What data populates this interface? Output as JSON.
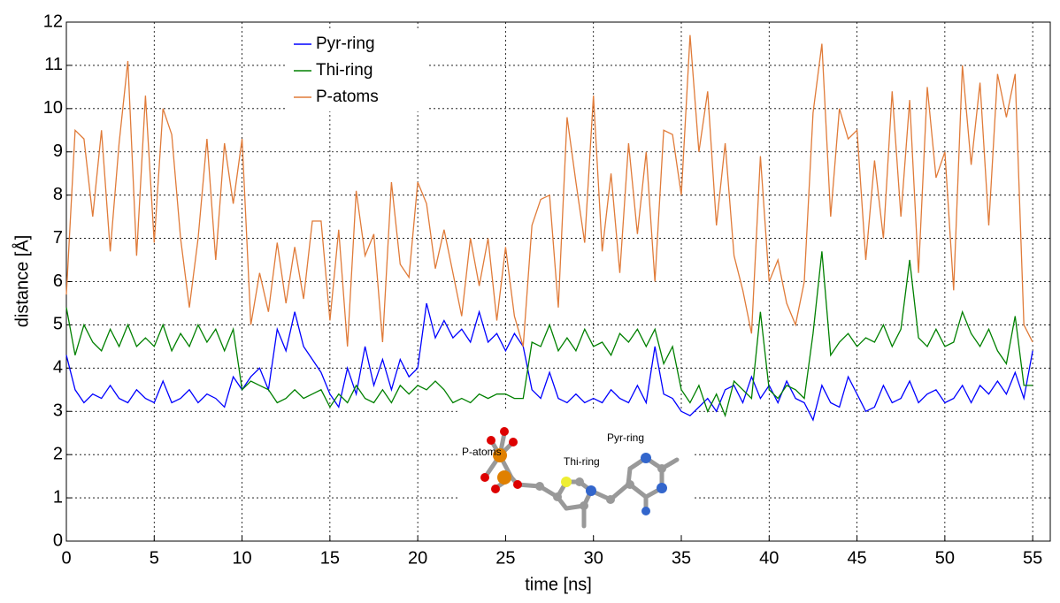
{
  "chart_data": {
    "type": "line",
    "x_label": "time [ns]",
    "y_label": "distance [Å]",
    "xlim": [
      0,
      56
    ],
    "ylim": [
      0,
      12
    ],
    "xticks": [
      0,
      5,
      10,
      15,
      20,
      25,
      30,
      35,
      40,
      45,
      50,
      55
    ],
    "yticks": [
      0,
      1,
      2,
      3,
      4,
      5,
      6,
      7,
      8,
      9,
      10,
      11,
      12
    ],
    "grid": true,
    "legend": "upper left",
    "annotations": [
      "P-atoms",
      "Thi-ring",
      "Pyr-ring"
    ],
    "x": [
      0,
      0.5,
      1,
      1.5,
      2,
      2.5,
      3,
      3.5,
      4,
      4.5,
      5,
      5.5,
      6,
      6.5,
      7,
      7.5,
      8,
      8.5,
      9,
      9.5,
      10,
      10.5,
      11,
      11.5,
      12,
      12.5,
      13,
      13.5,
      14,
      14.5,
      15,
      15.5,
      16,
      16.5,
      17,
      17.5,
      18,
      18.5,
      19,
      19.5,
      20,
      20.5,
      21,
      21.5,
      22,
      22.5,
      23,
      23.5,
      24,
      24.5,
      25,
      25.5,
      26,
      26.5,
      27,
      27.5,
      28,
      28.5,
      29,
      29.5,
      30,
      30.5,
      31,
      31.5,
      32,
      32.5,
      33,
      33.5,
      34,
      34.5,
      35,
      35.5,
      36,
      36.5,
      37,
      37.5,
      38,
      38.5,
      39,
      39.5,
      40,
      40.5,
      41,
      41.5,
      42,
      42.5,
      43,
      43.5,
      44,
      44.5,
      45,
      45.5,
      46,
      46.5,
      47,
      47.5,
      48,
      48.5,
      49,
      49.5,
      50,
      50.5,
      51,
      51.5,
      52,
      52.5,
      53,
      53.5,
      54,
      54.5,
      55
    ],
    "series": [
      {
        "name": "Pyr-ring",
        "color": "#0000ff",
        "values": [
          4.3,
          3.5,
          3.2,
          3.4,
          3.3,
          3.6,
          3.3,
          3.2,
          3.5,
          3.3,
          3.2,
          3.7,
          3.2,
          3.3,
          3.5,
          3.2,
          3.4,
          3.3,
          3.1,
          3.8,
          3.5,
          3.8,
          4.0,
          3.5,
          4.9,
          4.4,
          5.3,
          4.5,
          4.2,
          3.9,
          3.4,
          3.1,
          4.0,
          3.4,
          4.5,
          3.6,
          4.2,
          3.5,
          4.2,
          3.8,
          4.0,
          5.5,
          4.7,
          5.1,
          4.7,
          4.9,
          4.6,
          5.3,
          4.6,
          4.8,
          4.4,
          4.8,
          4.5,
          3.5,
          3.3,
          3.9,
          3.3,
          3.2,
          3.4,
          3.2,
          3.3,
          3.2,
          3.5,
          3.3,
          3.2,
          3.6,
          3.2,
          4.5,
          3.4,
          3.3,
          3.0,
          2.9,
          3.1,
          3.3,
          3.0,
          3.5,
          3.6,
          3.2,
          3.8,
          3.3,
          3.6,
          3.2,
          3.7,
          3.3,
          3.2,
          2.8,
          3.6,
          3.2,
          3.1,
          3.8,
          3.4,
          3.0,
          3.1,
          3.6,
          3.2,
          3.3,
          3.7,
          3.2,
          3.4,
          3.5,
          3.2,
          3.3,
          3.6,
          3.2,
          3.6,
          3.4,
          3.7,
          3.4,
          3.9,
          3.3,
          4.4
        ]
      },
      {
        "name": "Thi-ring",
        "color": "#008000",
        "values": [
          5.4,
          4.3,
          5.0,
          4.6,
          4.4,
          4.9,
          4.5,
          5.0,
          4.5,
          4.7,
          4.5,
          5.0,
          4.4,
          4.8,
          4.5,
          5.0,
          4.6,
          4.9,
          4.4,
          4.9,
          3.5,
          3.7,
          3.6,
          3.5,
          3.2,
          3.3,
          3.5,
          3.3,
          3.4,
          3.5,
          3.1,
          3.4,
          3.2,
          3.6,
          3.3,
          3.2,
          3.5,
          3.2,
          3.6,
          3.4,
          3.6,
          3.5,
          3.7,
          3.5,
          3.2,
          3.3,
          3.2,
          3.4,
          3.3,
          3.4,
          3.4,
          3.3,
          3.3,
          4.6,
          4.5,
          5.0,
          4.4,
          4.7,
          4.4,
          4.9,
          4.5,
          4.6,
          4.3,
          4.8,
          4.6,
          4.9,
          4.5,
          4.9,
          4.1,
          4.5,
          3.5,
          3.2,
          3.6,
          3.0,
          3.4,
          2.9,
          3.7,
          3.5,
          3.3,
          5.3,
          3.5,
          3.3,
          3.6,
          3.5,
          3.3,
          4.8,
          6.7,
          4.3,
          4.6,
          4.8,
          4.5,
          4.7,
          4.6,
          5.0,
          4.5,
          4.9,
          6.5,
          4.7,
          4.5,
          4.9,
          4.5,
          4.6,
          5.3,
          4.8,
          4.5,
          4.9,
          4.4,
          4.1,
          5.2,
          3.6,
          3.6
        ]
      },
      {
        "name": "P-atoms",
        "color": "#e07b39",
        "values": [
          5.7,
          9.5,
          9.3,
          7.5,
          9.5,
          6.7,
          9.2,
          11.1,
          6.6,
          10.3,
          6.9,
          10.0,
          9.4,
          7.0,
          5.4,
          7.0,
          9.3,
          6.5,
          9.2,
          7.8,
          9.3,
          5.0,
          6.2,
          5.3,
          6.9,
          5.5,
          6.8,
          5.6,
          7.4,
          7.4,
          5.1,
          7.2,
          4.5,
          8.1,
          6.6,
          7.1,
          4.6,
          8.3,
          6.4,
          6.1,
          8.3,
          7.8,
          6.3,
          7.2,
          6.2,
          5.2,
          7.0,
          5.9,
          7.0,
          5.1,
          6.8,
          5.2,
          4.5,
          7.3,
          7.9,
          8.0,
          5.4,
          9.8,
          8.3,
          6.9,
          10.3,
          6.7,
          8.5,
          6.2,
          9.2,
          7.1,
          9.0,
          6.0,
          9.5,
          9.4,
          8.0,
          11.7,
          9.0,
          10.4,
          7.3,
          9.2,
          6.6,
          5.8,
          4.8,
          8.9,
          6.0,
          6.5,
          5.5,
          5.0,
          6.0,
          9.9,
          11.5,
          7.5,
          10.0,
          9.3,
          9.5,
          6.5,
          8.8,
          7.0,
          10.4,
          7.5,
          10.2,
          6.2,
          10.5,
          8.4,
          9.0,
          5.8,
          11.0,
          8.7,
          10.6,
          7.3,
          10.8,
          9.8,
          10.8,
          5.0,
          4.6
        ]
      }
    ]
  }
}
